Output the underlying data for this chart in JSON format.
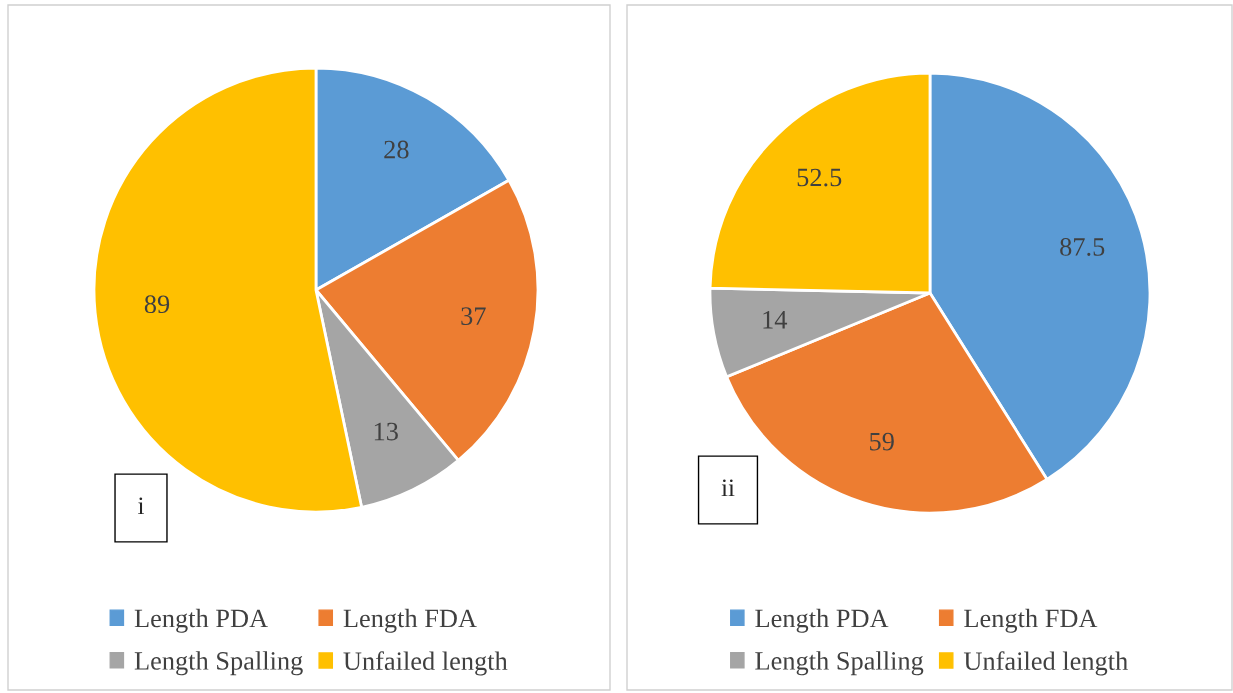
{
  "chart_data": [
    {
      "type": "pie",
      "categories": [
        "Length PDA",
        "Length FDA",
        "Length Spalling",
        "Unfailed length"
      ],
      "values": [
        28,
        37,
        13,
        89
      ],
      "colors": [
        "#5b9bd5",
        "#ed7d31",
        "#a5a5a5",
        "#ffc000"
      ],
      "data_labels": true,
      "legend": "bottom",
      "annotations": [
        "i"
      ]
    },
    {
      "type": "pie",
      "categories": [
        "Length PDA",
        "Length FDA",
        "Length Spalling",
        "Unfailed length"
      ],
      "values": [
        87.5,
        59,
        14,
        52.5
      ],
      "colors": [
        "#5b9bd5",
        "#ed7d31",
        "#a5a5a5",
        "#ffc000"
      ],
      "data_labels": true,
      "legend": "bottom",
      "annotations": [
        "ii"
      ]
    }
  ]
}
